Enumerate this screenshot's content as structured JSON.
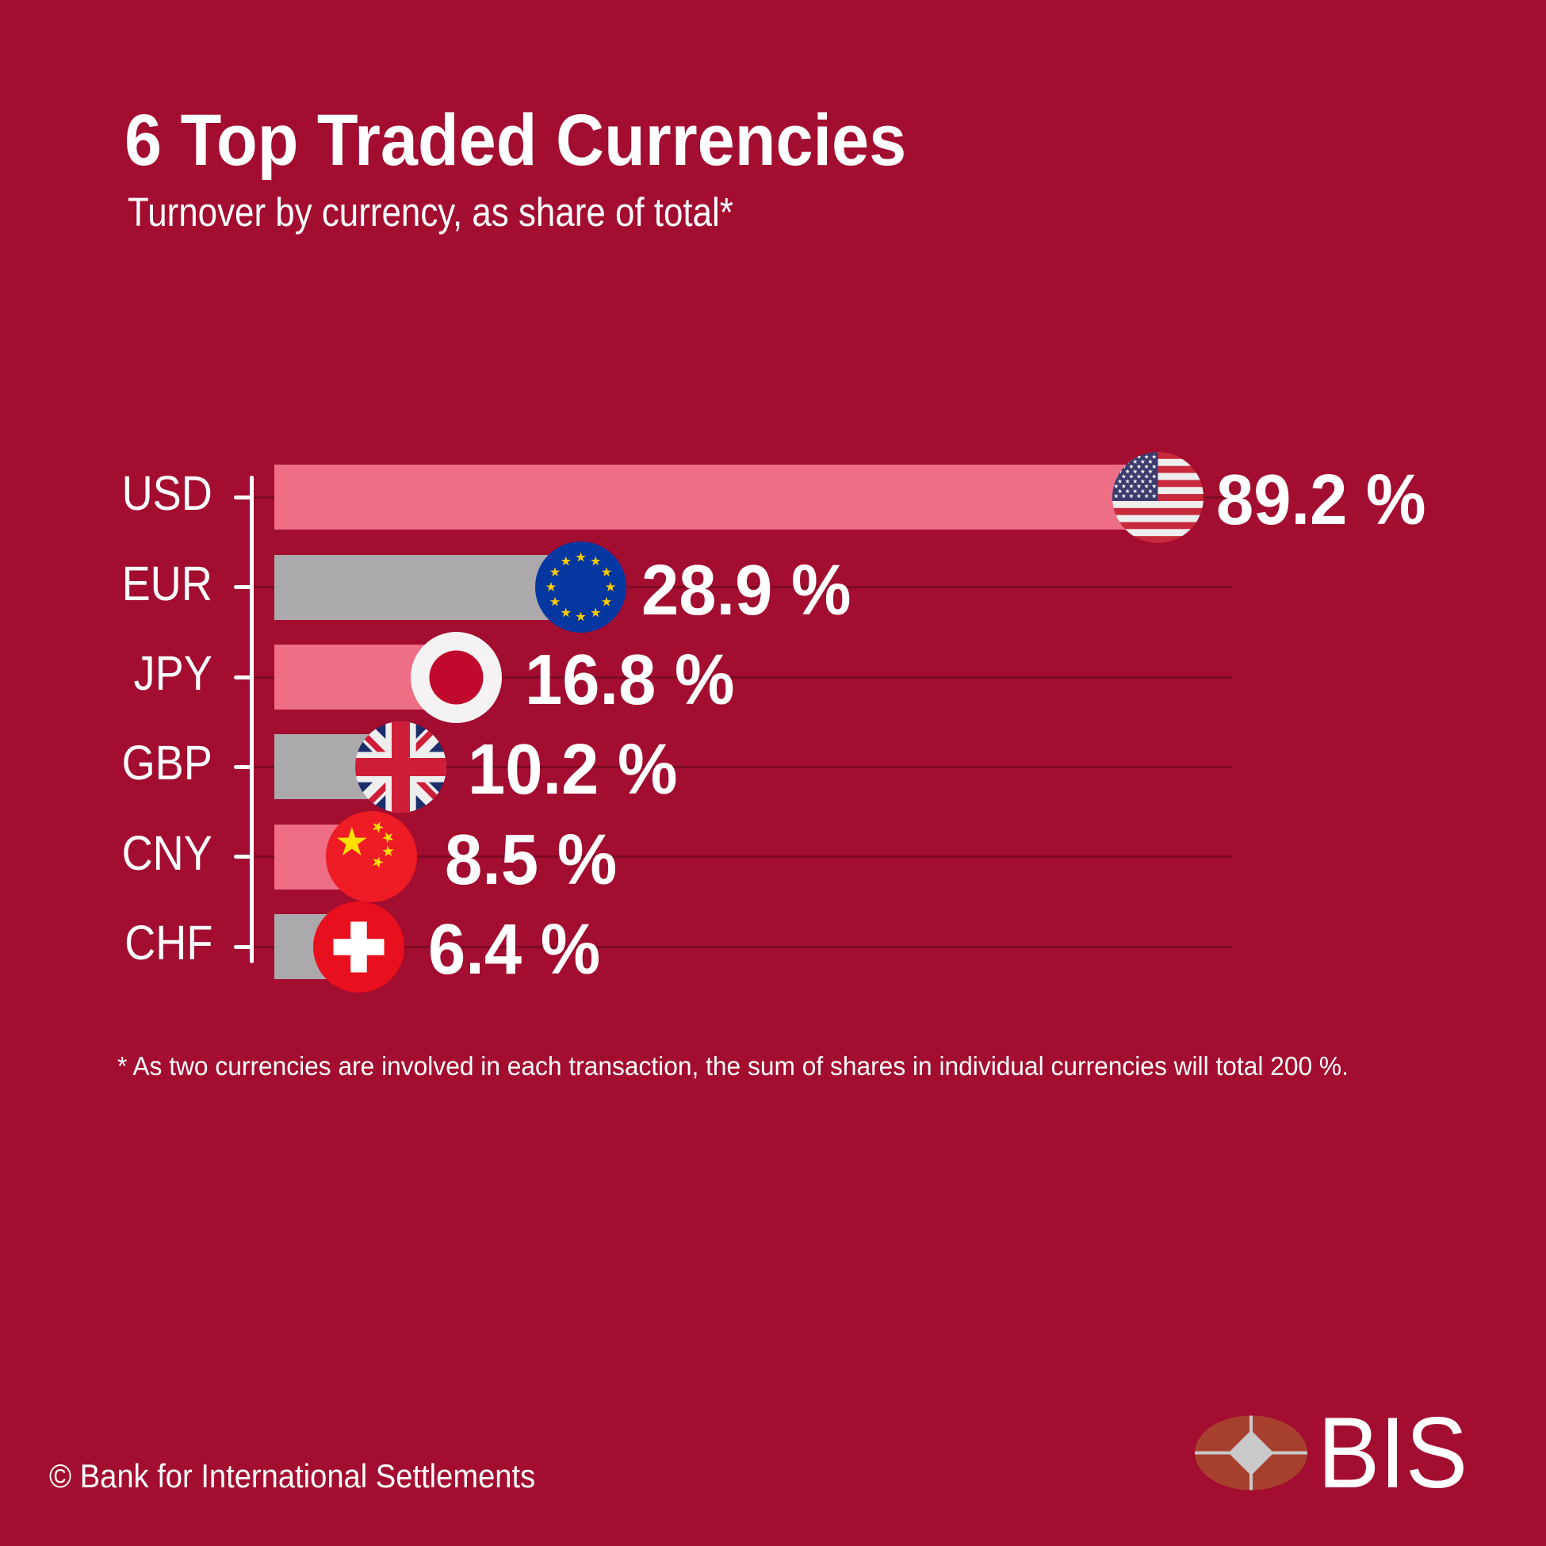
{
  "title": "6 Top Traded Currencies",
  "subtitle": "Turnover by currency, as share of total*",
  "footnote": "* As two currencies are involved in each transaction, the sum of shares in individual currencies will total 200 %.",
  "copyright": "© Bank for International Settlements",
  "logo": {
    "text": "BIS"
  },
  "colors": {
    "background": "#A30D2F",
    "bar_pink": "#ED6E85",
    "bar_gray": "#ABA9AC",
    "gridline": "#7D0A23",
    "axis": "#FFFFFF",
    "text": "#FFFFFF",
    "logo_ellipse": "#A8402F",
    "logo_mark_gray": "#C9C9C9"
  },
  "chart_data": {
    "type": "bar",
    "orientation": "horizontal",
    "title": "6 Top Traded Currencies",
    "subtitle": "Turnover by currency, as share of total*",
    "categories": [
      "USD",
      "EUR",
      "JPY",
      "GBP",
      "CNY",
      "CHF"
    ],
    "values": [
      89.2,
      28.9,
      16.8,
      10.2,
      8.5,
      6.4
    ],
    "value_labels": [
      "89.2 %",
      "28.9 %",
      "16.8 %",
      "10.2 %",
      "8.5 %",
      "6.4 %"
    ],
    "unit": "%",
    "flags": [
      "us",
      "eu",
      "jp",
      "gb",
      "cn",
      "ch"
    ],
    "series_colors": [
      "#ED6E85",
      "#ABA9AC",
      "#ED6E85",
      "#ABA9AC",
      "#ED6E85",
      "#ABA9AC"
    ],
    "xlim": [
      0,
      100
    ],
    "grid": true,
    "legend": false
  }
}
